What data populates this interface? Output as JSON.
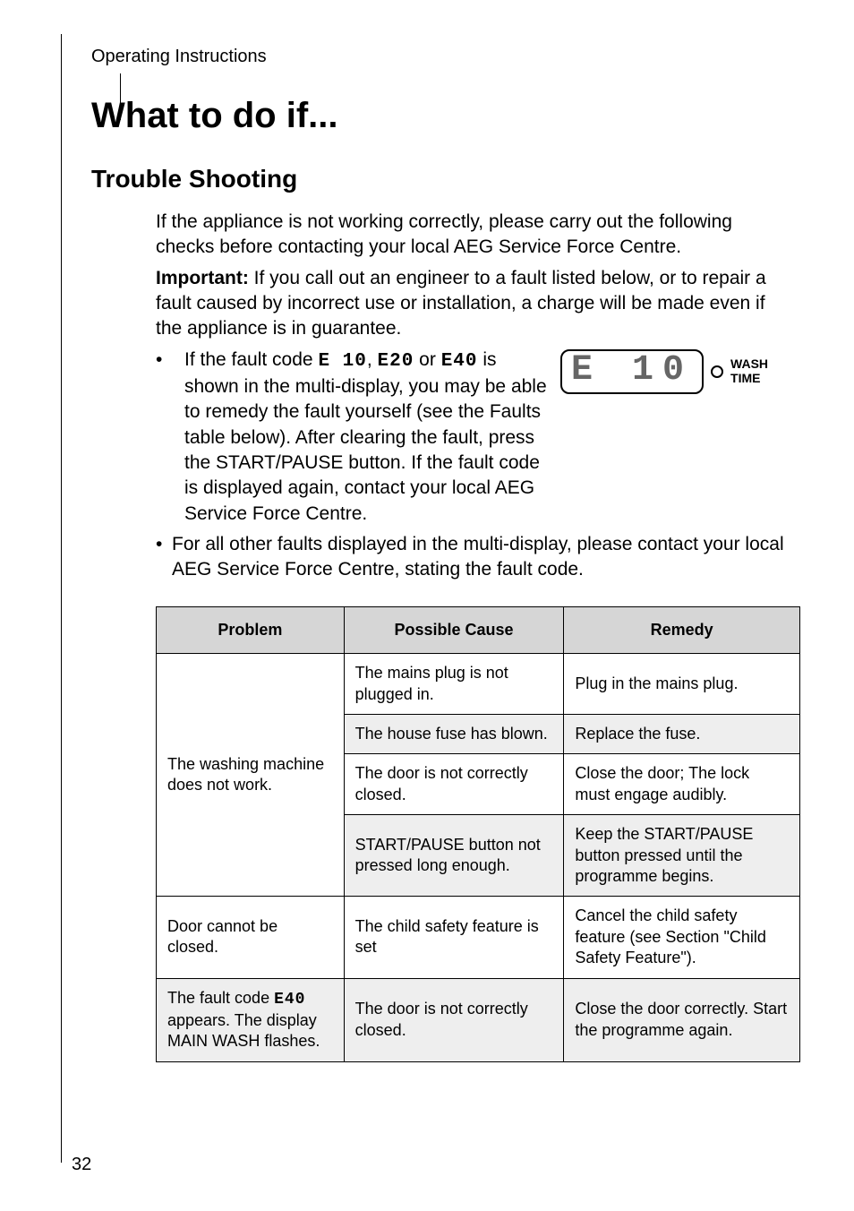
{
  "header": {
    "section": "Operating Instructions"
  },
  "title": "What to do if...",
  "subtitle": "Trouble Shooting",
  "intro": {
    "p1": "If the appliance is not working correctly, please carry out the following checks before contacting your local AEG Service Force Centre.",
    "important_label": "Important:",
    "important_text": "  If you call out an engineer to a fault listed below, or to repair a fault caused by incorrect use or installation, a charge will be made even if the appliance is in guarantee."
  },
  "bullets": [
    {
      "pre": "If the fault code ",
      "code1": "E 10",
      "mid1": ", ",
      "code2": "E20",
      "mid2": " or ",
      "code3": "E40",
      "post": " is shown in the multi-display, you may be able to remedy the fault yourself (see the Faults table below). After clearing the fault, press the START/PAUSE button. If the fault code is displayed again, contact your local AEG Service Force Centre.",
      "has_figure": true
    },
    {
      "pre": "For all other faults displayed in the multi-display, please contact your local AEG Service Force Centre, stating the fault code.",
      "has_figure": false
    }
  ],
  "figure": {
    "display_text": "E 10",
    "wash_line1": "WASH",
    "wash_line2": "TIME"
  },
  "table": {
    "columns": [
      "Problem",
      "Possible Cause",
      "Remedy"
    ],
    "col_widths": [
      "210px",
      "246px",
      "264px"
    ],
    "header_bg": "#d6d6d6",
    "row_bg_even": "#eeeeee",
    "row_bg_odd": "#ffffff",
    "rows_html": [
      {
        "problem": "The washing machine does not work.",
        "problem_rowspan": 4,
        "cause": "The mains plug is not plugged in.",
        "remedy": "Plug in the mains plug."
      },
      {
        "cause": "The house fuse has blown.",
        "remedy": "Replace the fuse."
      },
      {
        "cause": "The door is not correctly closed.",
        "remedy": "Close the door; The lock must engage audibly."
      },
      {
        "cause": "START/PAUSE button not pressed long enough.",
        "remedy": "Keep the START/PAUSE button pressed until the programme begins."
      },
      {
        "problem": "Door cannot be closed.",
        "cause": "The child safety feature is set",
        "remedy": "Cancel the child safety feature (see Section \"Child Safety Feature\")."
      },
      {
        "problem_html": "The fault code <span class=\"inline-code\">E40</span> appears. The display MAIN WASH flashes.",
        "cause": "The door is not correctly closed.",
        "remedy": "Close the door correctly. Start the programme again."
      }
    ]
  },
  "page_number": "32",
  "colors": {
    "text": "#000000",
    "seg_text": "#666666"
  },
  "fonts": {
    "body_size_pt": 16,
    "title_size_pt": 30,
    "subtitle_size_pt": 21,
    "table_size_pt": 13
  }
}
